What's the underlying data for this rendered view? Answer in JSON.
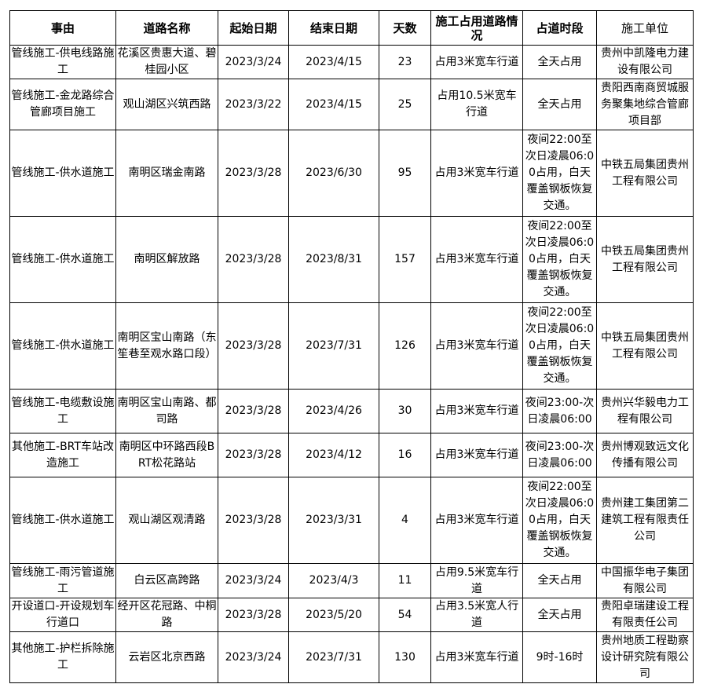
{
  "headers": [
    "事由",
    "道路名称",
    "起始日期",
    "结束日期",
    "天数",
    "施工占用道路情况",
    "占道时段",
    "施工单位"
  ],
  "rows": [
    [
      "管线施工-供电线路施工",
      "花溪区贵惠大道、碧桂园小区",
      "2023/3/24",
      "2023/4/15",
      "23",
      "占用3米宽车行道",
      "全天占用",
      "贵州中凯隆电力建设有限公司"
    ],
    [
      "管线施工-金龙路综合管廊项目施工",
      "观山湖区兴筑西路",
      "2023/3/22",
      "2023/4/15",
      "25",
      "占用10.5米宽车行道",
      "全天占用",
      "贵阳西南商贸城服务聚集地综合管廊项目部"
    ],
    [
      "管线施工-供水道施工",
      "南明区瑞金南路",
      "2023/3/28",
      "2023/6/30",
      "95",
      "占用3米宽车行道",
      "夜间22:00至次日凌晨06:00占用，白天覆盖钢板恢复交通。",
      "中铁五局集团贵州工程有限公司"
    ],
    [
      "管线施工-供水道施工",
      "南明区解放路",
      "2023/3/28",
      "2023/8/31",
      "157",
      "占用3米宽车行道",
      "夜间22:00至次日凌晨06:00占用，白天覆盖钢板恢复交通。",
      "中铁五局集团贵州工程有限公司"
    ],
    [
      "管线施工-供水道施工",
      "南明区宝山南路（东笙巷至观水路口段）",
      "2023/3/28",
      "2023/7/31",
      "126",
      "占用3米宽车行道",
      "夜间22:00至次日凌晨06:00占用，白天覆盖钢板恢复交通。",
      "中铁五局集团贵州工程有限公司"
    ],
    [
      "管线施工-电缆敷设施工",
      "南明区宝山南路、都司路",
      "2023/3/28",
      "2023/4/26",
      "30",
      "占用3米宽车行道",
      "夜间23:00-次日凌晨06:00",
      "贵州兴华毅电力工程有限公司"
    ],
    [
      "其他施工-BRT车站改造施工",
      "南明区中环路西段BRT松花路站",
      "2023/3/28",
      "2023/4/12",
      "16",
      "占用3米宽车行道",
      "夜间23:00-次日凌晨06:00",
      "贵州博观致远文化传播有限公司"
    ],
    [
      "管线施工-供水道施工",
      "观山湖区观清路",
      "2023/3/28",
      "2023/3/31",
      "4",
      "占用3米宽车行道",
      "夜间22:00至次日凌晨06:00占用，白天覆盖钢板恢复交通。",
      "贵州建工集团第二建筑工程有限责任公司"
    ],
    [
      "管线施工-雨污管道施工",
      "白云区高跨路",
      "2023/3/24",
      "2023/4/3",
      "11",
      "占用9.5米宽车行道",
      "全天占用",
      "中国振华电子集团有限公司"
    ],
    [
      "开设道口-开设规划车行道口",
      "经开区花冠路、中桐路",
      "2023/3/28",
      "2023/5/20",
      "54",
      "占用3.5米宽人行道",
      "全天占用",
      "贵阳卓瑞建设工程有限责任公司"
    ],
    [
      "其他施工-护栏拆除施工",
      "云岩区北京西路",
      "2023/3/24",
      "2023/7/31",
      "130",
      "占用3米宽车行道",
      "9时-16时",
      "贵州地质工程勘察设计研究院有限公司"
    ]
  ]
}
